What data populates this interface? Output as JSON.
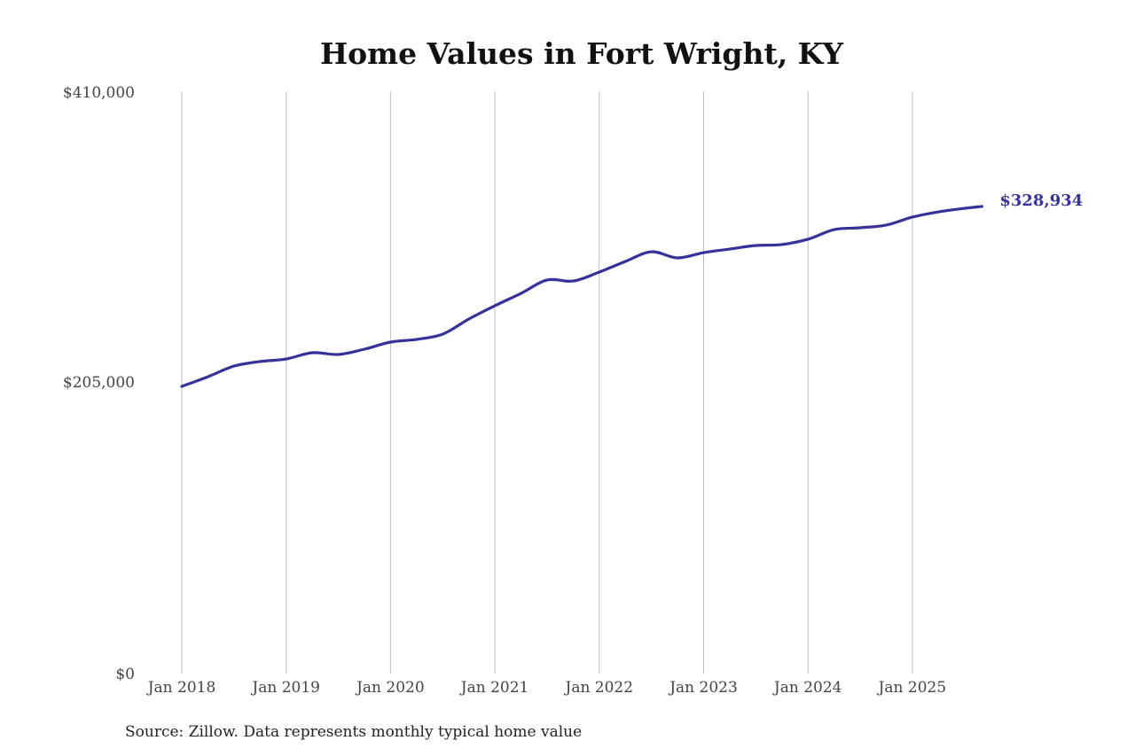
{
  "chart_data": {
    "type": "line",
    "title": "Home Values in Fort Wright, KY",
    "xlabel": "",
    "ylabel": "",
    "ylim": [
      0,
      410000
    ],
    "y_ticks": [
      {
        "value": 0,
        "label": "$0"
      },
      {
        "value": 205000,
        "label": "$205,000"
      },
      {
        "value": 410000,
        "label": "$410,000"
      }
    ],
    "x_ticks": [
      "Jan 2018",
      "Jan 2019",
      "Jan 2020",
      "Jan 2021",
      "Jan 2022",
      "Jan 2023",
      "Jan 2024",
      "Jan 2025"
    ],
    "grid": "vertical",
    "line_color": "#35329a",
    "end_label": "$328,934",
    "series": [
      {
        "x": [
          "2018-01",
          "2018-04",
          "2018-07",
          "2018-10",
          "2019-01",
          "2019-04",
          "2019-07",
          "2019-10",
          "2020-01",
          "2020-04",
          "2020-07",
          "2020-10",
          "2021-01",
          "2021-04",
          "2021-07",
          "2021-10",
          "2022-01",
          "2022-04",
          "2022-07",
          "2022-10",
          "2023-01",
          "2023-04",
          "2023-07",
          "2023-10",
          "2024-01",
          "2024-04",
          "2024-07",
          "2024-10",
          "2025-01",
          "2025-04",
          "2025-07",
          "2025-09"
        ],
        "values": [
          202200,
          209000,
          216500,
          219700,
          221500,
          225900,
          224700,
          228400,
          233400,
          235300,
          239000,
          249600,
          259000,
          267700,
          277100,
          276400,
          282700,
          290200,
          297000,
          292700,
          296400,
          298900,
          301400,
          302100,
          305800,
          312600,
          313900,
          315800,
          321400,
          325100,
          327600,
          328934
        ]
      }
    ]
  },
  "source": "Source: Zillow. Data represents monthly typical home value"
}
